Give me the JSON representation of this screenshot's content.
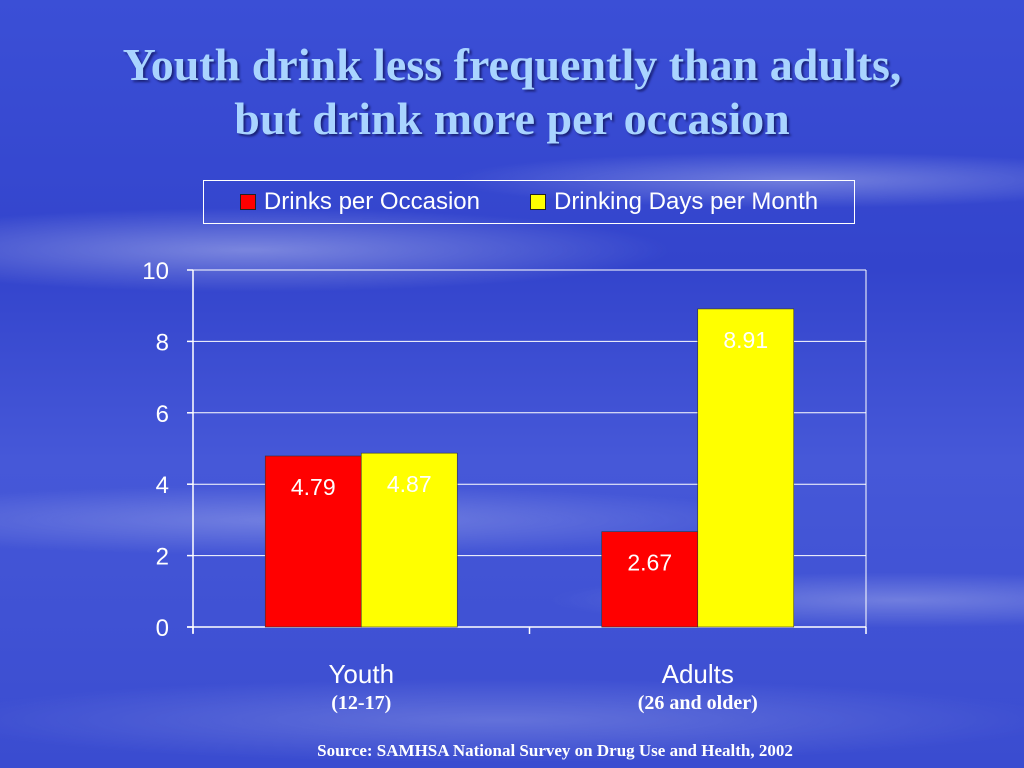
{
  "title_line1": "Youth drink less frequently than adults,",
  "title_line2": "but drink more per occasion",
  "source": "Source:  SAMHSA National Survey on Drug Use and Health, 2002",
  "colors": {
    "drinks_per_occasion": "#ff0000",
    "drinking_days": "#ffff00",
    "axis": "#ffffff"
  },
  "chart_data": {
    "type": "bar",
    "categories": [
      "Youth",
      "Adults"
    ],
    "category_sublabels": [
      "(12-17)",
      "(26 and older)"
    ],
    "series": [
      {
        "name": "Drinks per Occasion",
        "values": [
          4.79,
          2.67
        ],
        "labels": [
          "4.79",
          "2.67"
        ]
      },
      {
        "name": "Drinking Days per Month",
        "values": [
          4.87,
          8.91
        ],
        "labels": [
          "4.87",
          "8.91"
        ]
      }
    ],
    "ylim": [
      0,
      10
    ],
    "yticks": [
      0,
      2,
      4,
      6,
      8,
      10
    ],
    "grid": true,
    "legend_position": "top"
  }
}
